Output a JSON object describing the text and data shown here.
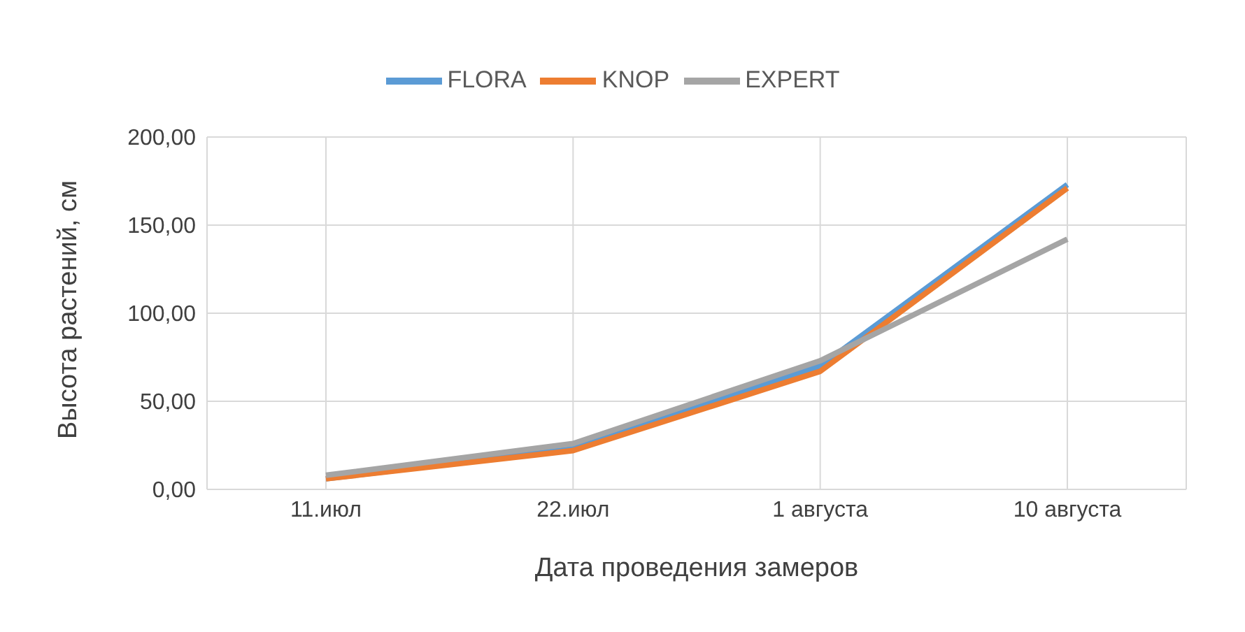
{
  "chart_data": {
    "type": "line",
    "xlabel": "Дата проведения замеров",
    "ylabel": "Высота растений, см",
    "categories": [
      "11.июл",
      "22.июл",
      "1 августа",
      "10 августа"
    ],
    "series": [
      {
        "name": "FLORA",
        "color": "#5b9bd5",
        "values": [
          6,
          23,
          70,
          173
        ]
      },
      {
        "name": "KNOP",
        "color": "#ed7d31",
        "values": [
          6,
          22,
          67,
          171
        ]
      },
      {
        "name": "EXPERT",
        "color": "#a5a5a5",
        "values": [
          8,
          26,
          73,
          142
        ]
      }
    ],
    "ylim": [
      0,
      200
    ],
    "yticks": [
      {
        "value": 0,
        "label": "0,00"
      },
      {
        "value": 50,
        "label": "50,00"
      },
      {
        "value": 100,
        "label": "100,00"
      },
      {
        "value": 150,
        "label": "150,00"
      },
      {
        "value": 200,
        "label": "200,00"
      }
    ],
    "grid": true,
    "legend": "top",
    "marker": "none",
    "line_style": "solid"
  }
}
